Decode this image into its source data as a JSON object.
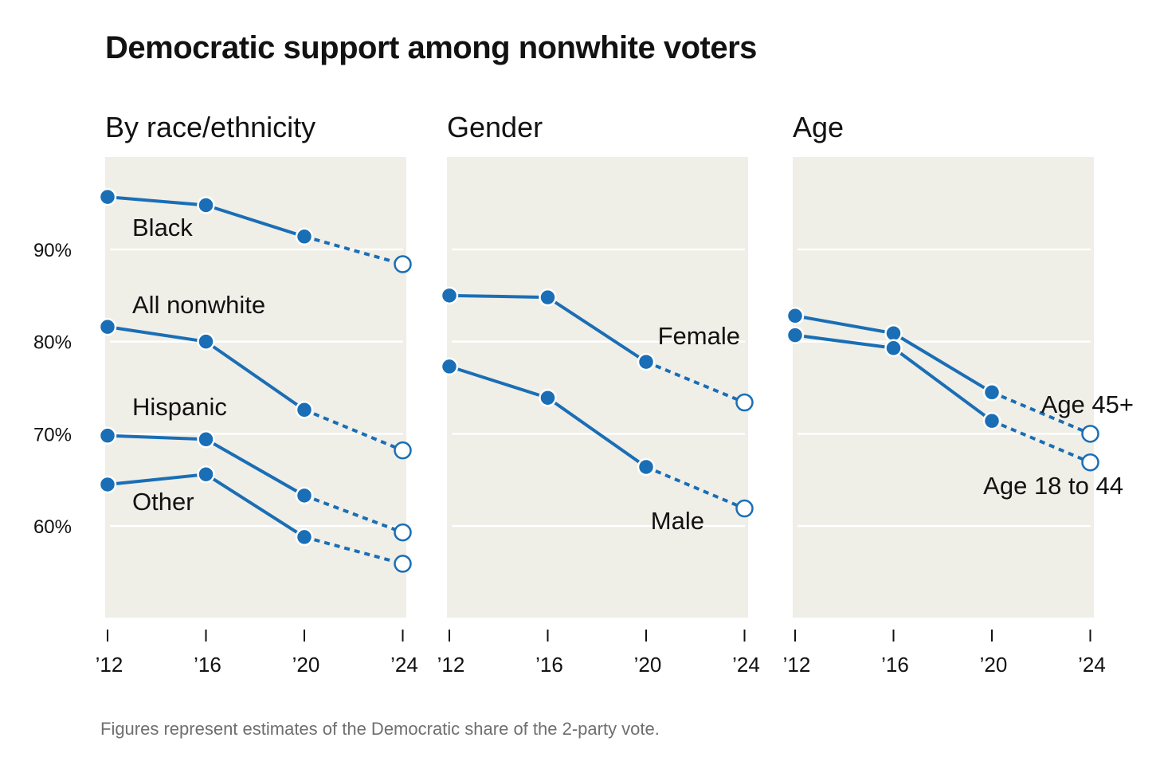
{
  "title": "Democratic support among nonwhite voters",
  "note": "Figures represent estimates of the Democratic share of the 2-party vote.",
  "colors": {
    "line": "#1a6eb5",
    "panel_bg": "#efeee7",
    "grid": "#ffffff"
  },
  "chart_data": {
    "type": "line",
    "x": [
      2012,
      2016,
      2020,
      2024
    ],
    "xtick_labels": [
      "’12",
      "’16",
      "’20",
      "’24"
    ],
    "ytick_labels": [
      "60%",
      "70%",
      "80%",
      "90%"
    ],
    "yticks": [
      60,
      70,
      80,
      90
    ],
    "ylim": [
      50,
      100
    ],
    "note": "Solid lines 2012–2020; dashed segment to open 2024 estimate",
    "panels": [
      {
        "title": "By race/ethnicity",
        "series": [
          {
            "name": "Black",
            "values": [
              95.7,
              94.8,
              91.4,
              88.4
            ]
          },
          {
            "name": "All nonwhite",
            "values": [
              81.6,
              80.0,
              72.6,
              68.2
            ]
          },
          {
            "name": "Hispanic",
            "values": [
              69.8,
              69.4,
              63.3,
              59.3
            ]
          },
          {
            "name": "Other",
            "values": [
              64.5,
              65.6,
              58.8,
              55.9
            ]
          }
        ]
      },
      {
        "title": "Gender",
        "series": [
          {
            "name": "Female",
            "values": [
              85.0,
              84.8,
              77.8,
              73.4
            ]
          },
          {
            "name": "Male",
            "values": [
              77.3,
              73.9,
              66.4,
              61.9
            ]
          }
        ]
      },
      {
        "title": "Age",
        "series": [
          {
            "name": "Age 45+",
            "values": [
              82.8,
              80.9,
              74.5,
              70.0
            ]
          },
          {
            "name": "Age 18 to 44",
            "values": [
              80.7,
              79.3,
              71.4,
              66.9
            ]
          }
        ]
      }
    ]
  }
}
